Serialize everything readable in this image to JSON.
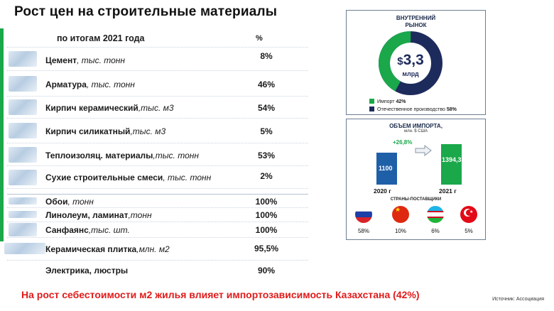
{
  "title": "Рост цен на строительные материалы",
  "table": {
    "header_label": "по итогам 2021 года",
    "header_unit": "%",
    "rows": [
      {
        "name": "Цемент",
        "unit": ", тыс. тонн",
        "pct": "8%"
      },
      {
        "name": "Арматура",
        "unit": ", тыс. тонн",
        "pct": "46%"
      },
      {
        "name": "Кирпич керамический",
        "unit": ",тыс. м3",
        "pct": "54%"
      },
      {
        "name": "Кирпич силикатный",
        "unit": ",тыс. м3",
        "pct": "5%"
      },
      {
        "name": "Теплоизоляц. материалы",
        "unit": ",тыс. тонн",
        "pct": "53%"
      },
      {
        "name": "Сухие строительные смеси",
        "unit": ", тыс. тонн",
        "pct": "2%"
      },
      {
        "name": "Обои",
        "unit": ", тонн",
        "pct": "100%"
      },
      {
        "name": "Линолеум, ламинат",
        "unit": ",тонн",
        "pct": "100%"
      },
      {
        "name": "Санфаянс",
        "unit": ",тыс. шт.",
        "pct": "100%"
      },
      {
        "name": "Керамическая плитка",
        "unit": ",млн. м2",
        "pct": "95,5%"
      },
      {
        "name": "Электрика, люстры",
        "unit": "",
        "pct": "90%"
      }
    ]
  },
  "donut": {
    "title_line1": "ВНУТРЕННИЙ",
    "title_line2": "РЫНОК",
    "currency": "$",
    "value": "3,3",
    "unit": "млрд",
    "import_label": "Импорт",
    "import_pct": "42%",
    "domestic_label": "Отечественное производство",
    "domestic_pct": "58%",
    "import_share": 0.42,
    "colors": {
      "import": "#1aa84a",
      "domestic": "#1d2b5c"
    }
  },
  "imports": {
    "title": "ОБЪЕМ ИМПОРТА,",
    "subtitle": "млн. $ США",
    "growth": "+26,8%",
    "bars": [
      {
        "year": "2020 г",
        "value": "1100",
        "amount": 1100,
        "color": "#1f5fa8"
      },
      {
        "year": "2021 г",
        "value": "1394,3",
        "amount": 1394.3,
        "color": "#1aa84a"
      }
    ],
    "countries_label": "СТРАНЫ-ПОСТАВЩИКИ",
    "countries": [
      {
        "flag": "russia-flag-icon",
        "share": "58%"
      },
      {
        "flag": "china-flag-icon",
        "share": "10%"
      },
      {
        "flag": "uzbekistan-flag-icon",
        "share": "6%"
      },
      {
        "flag": "turkey-flag-icon",
        "share": "5%"
      }
    ]
  },
  "footer": "На рост себестоимости м2 жилья влияет импортозависимость Казахстана (42%)",
  "source": "Источник: Ассоциация"
}
